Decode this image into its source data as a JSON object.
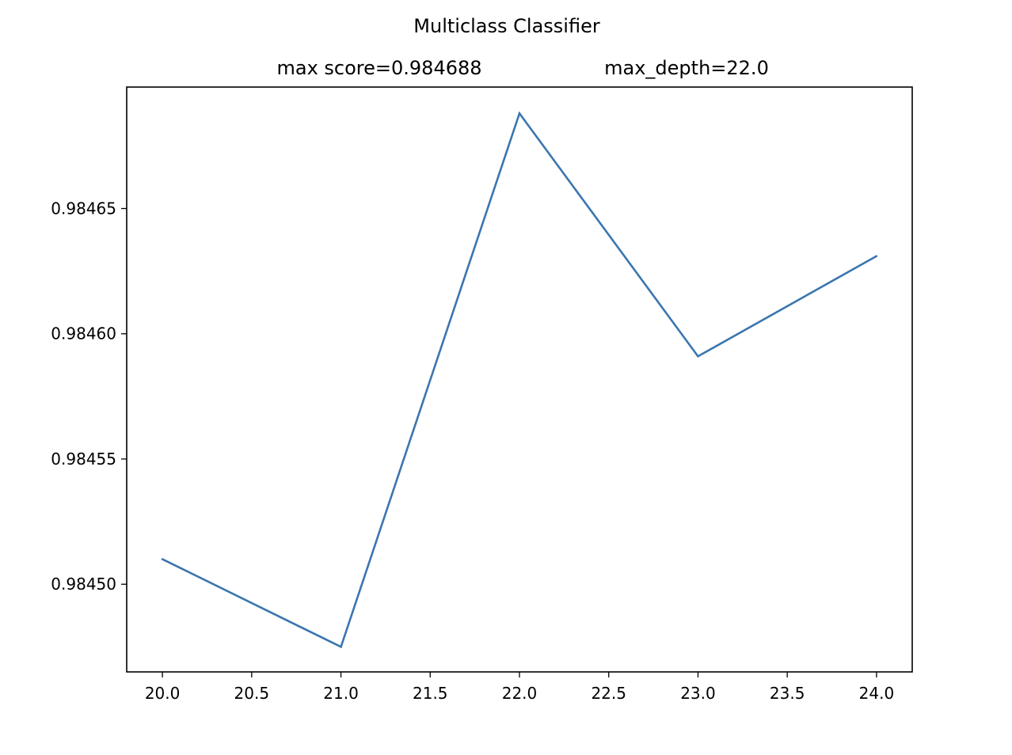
{
  "chart_data": {
    "type": "line",
    "title": "Multiclass Classifier",
    "subtitle_left": "max score=0.984688",
    "subtitle_right": "max_depth=22.0",
    "xlabel": "",
    "ylabel": "",
    "x": [
      20.0,
      21.0,
      22.0,
      23.0,
      24.0
    ],
    "series": [
      {
        "values": [
          0.98451,
          0.984475,
          0.984688,
          0.984591,
          0.984631
        ],
        "color": "#3a76af"
      }
    ],
    "xlim": [
      19.8,
      24.2
    ],
    "ylim": [
      0.984465,
      0.9846985
    ],
    "xticks": [
      20.0,
      20.5,
      21.0,
      21.5,
      22.0,
      22.5,
      23.0,
      23.5,
      24.0
    ],
    "xtick_labels": [
      "20.0",
      "20.5",
      "21.0",
      "21.5",
      "22.0",
      "22.5",
      "23.0",
      "23.5",
      "24.0"
    ],
    "yticks": [
      0.9845,
      0.98455,
      0.9846,
      0.98465
    ],
    "ytick_labels": [
      "0.98450",
      "0.98455",
      "0.98460",
      "0.98465"
    ],
    "grid": false,
    "legend": false
  }
}
